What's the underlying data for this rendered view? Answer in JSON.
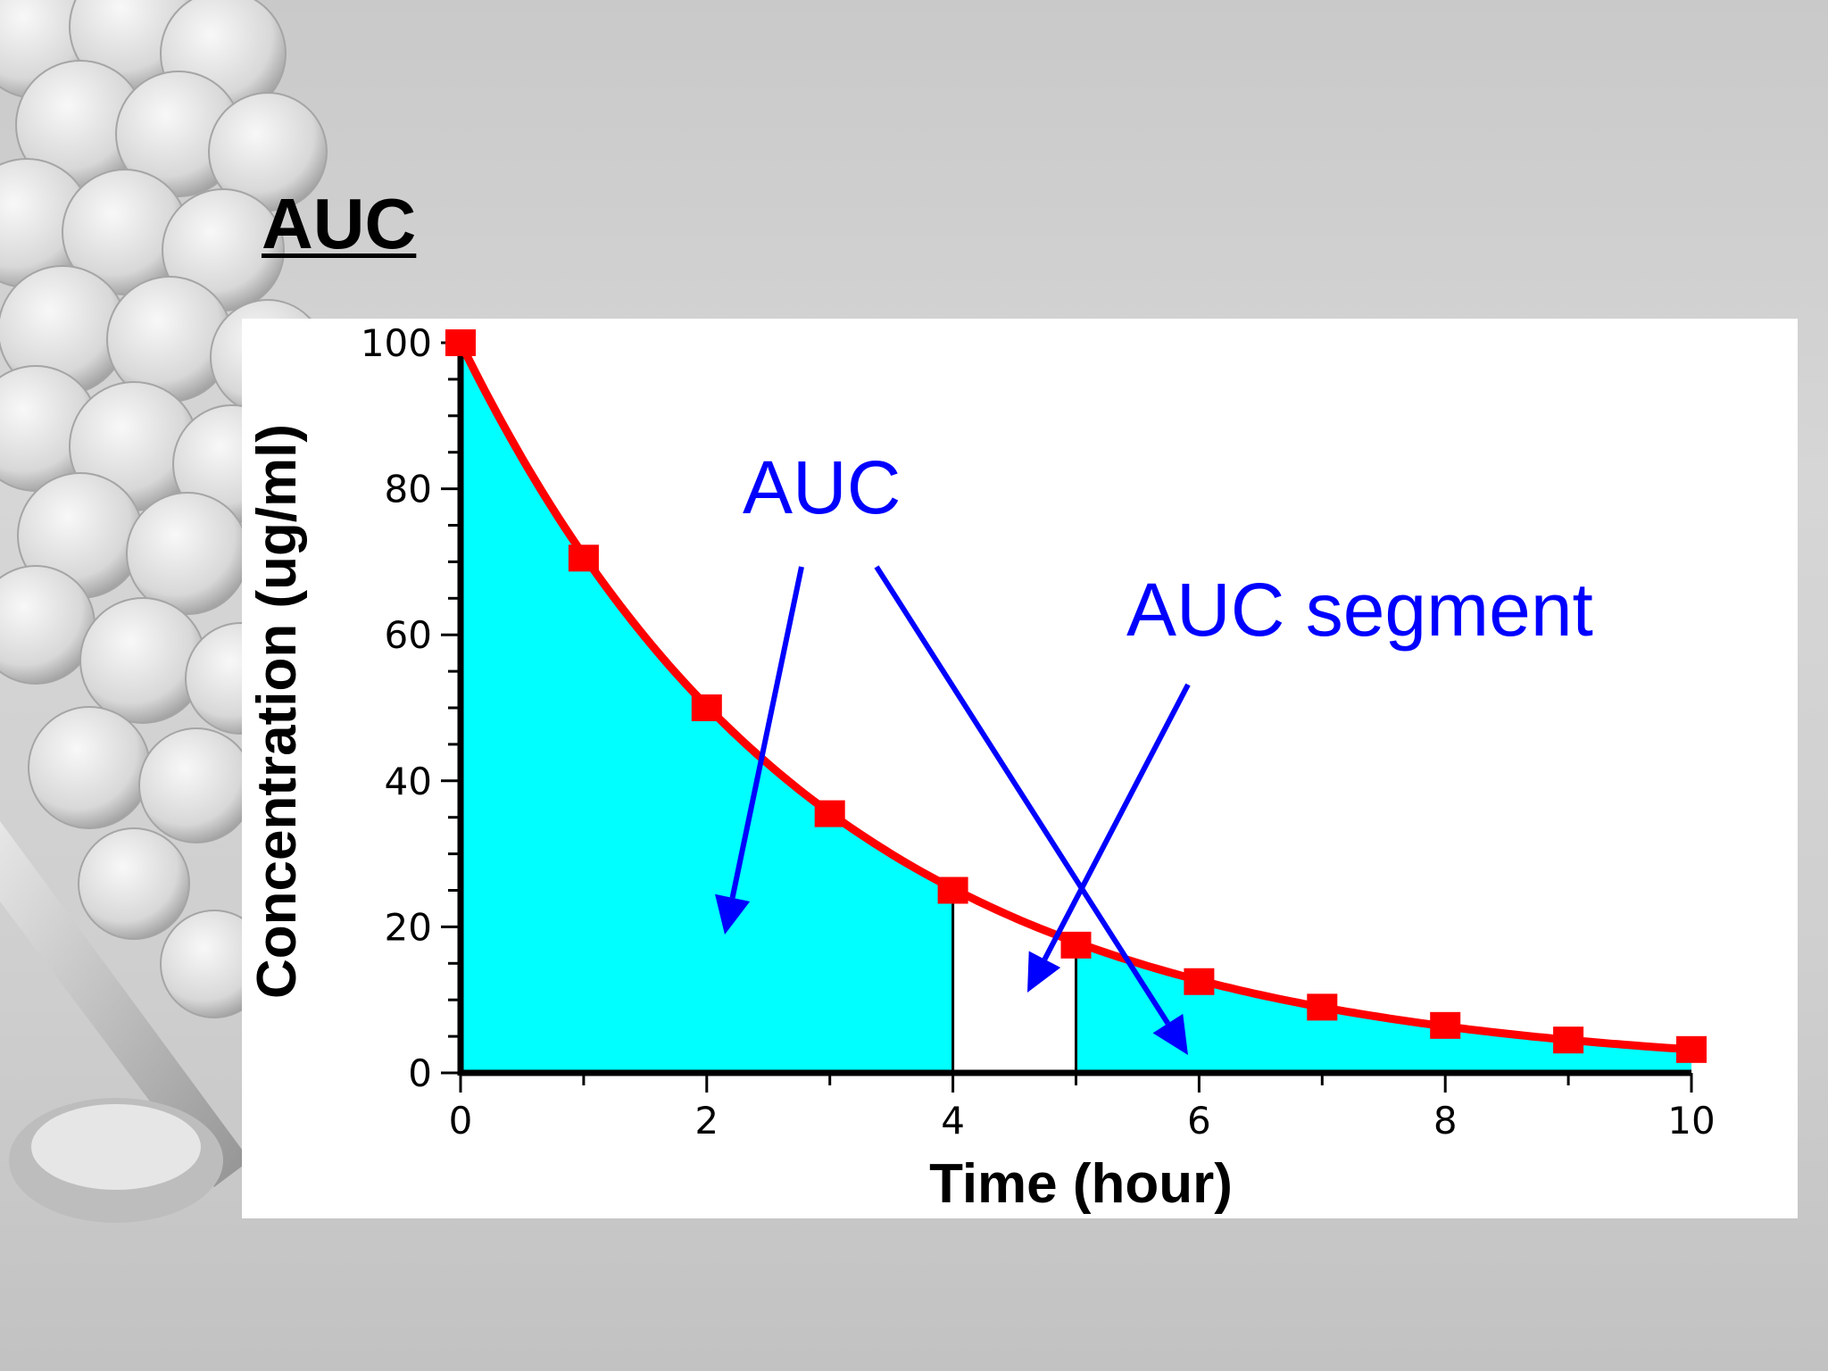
{
  "slide": {
    "title": "AUC"
  },
  "colors": {
    "curve": "#ff0000",
    "area": "#00ffff",
    "annotation": "#0000ff",
    "axis": "#000000",
    "panel": "#ffffff"
  },
  "chart_data": {
    "type": "area",
    "xlabel": "Time (hour)",
    "ylabel": "Concentration (ug/ml)",
    "xlim": [
      0,
      10
    ],
    "ylim": [
      0,
      100
    ],
    "xticks": [
      0,
      2,
      4,
      6,
      8,
      10
    ],
    "yticks": [
      0,
      20,
      40,
      60,
      80,
      100
    ],
    "x_minor_step": 1,
    "y_minor_step": 5,
    "grid": false,
    "series": [
      {
        "x": [
          0,
          1,
          2,
          3,
          4,
          5,
          6,
          7,
          8,
          9,
          10
        ],
        "values": [
          100,
          70.5,
          50,
          35.5,
          25,
          17.5,
          12.5,
          9,
          6.5,
          4.5,
          3.2
        ],
        "marker": "square"
      }
    ],
    "unshaded_interval": [
      4,
      5
    ],
    "annotations": [
      {
        "text": "AUC",
        "color": "#0000ff"
      },
      {
        "text": "AUC segment",
        "color": "#0000ff"
      }
    ]
  }
}
